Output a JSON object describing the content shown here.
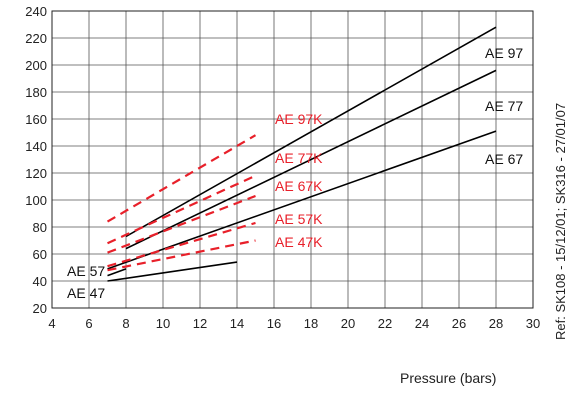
{
  "chart_data": {
    "type": "line",
    "title": "",
    "xlabel": "Pressure (bars)",
    "ylabel": "",
    "xlim": [
      4,
      30
    ],
    "ylim": [
      20,
      240
    ],
    "x_ticks": [
      4,
      6,
      8,
      10,
      12,
      14,
      16,
      18,
      20,
      22,
      24,
      26,
      28,
      30
    ],
    "y_ticks": [
      20,
      40,
      60,
      80,
      100,
      120,
      140,
      160,
      180,
      200,
      220,
      240
    ],
    "grid": true,
    "series": [
      {
        "name": "AE 97",
        "style": "solid",
        "color": "#000000",
        "x": [
          8,
          28
        ],
        "y": [
          73,
          228
        ]
      },
      {
        "name": "AE 77",
        "style": "solid",
        "color": "#000000",
        "x": [
          8,
          28
        ],
        "y": [
          64,
          196
        ]
      },
      {
        "name": "AE 67",
        "style": "solid",
        "color": "#000000",
        "x": [
          7,
          28
        ],
        "y": [
          49,
          151
        ]
      },
      {
        "name": "AE 57",
        "style": "solid",
        "color": "#000000",
        "x": [
          7,
          8
        ],
        "y": [
          44,
          49
        ]
      },
      {
        "name": "AE 47",
        "style": "solid",
        "color": "#000000",
        "x": [
          7,
          14
        ],
        "y": [
          40,
          54
        ]
      },
      {
        "name": "AE 97K",
        "style": "dashed",
        "color": "#e8202a",
        "x": [
          7,
          15
        ],
        "y": [
          84,
          148
        ]
      },
      {
        "name": "AE 77K",
        "style": "dashed",
        "color": "#e8202a",
        "x": [
          7,
          15
        ],
        "y": [
          68,
          118
        ]
      },
      {
        "name": "AE 67K",
        "style": "dashed",
        "color": "#e8202a",
        "x": [
          7,
          15
        ],
        "y": [
          61,
          103
        ]
      },
      {
        "name": "AE 57K",
        "style": "dashed",
        "color": "#e8202a",
        "x": [
          7,
          15
        ],
        "y": [
          51,
          83
        ]
      },
      {
        "name": "AE 47K",
        "style": "dashed",
        "color": "#e8202a",
        "x": [
          7,
          15
        ],
        "y": [
          48,
          70
        ]
      }
    ],
    "labels": {
      "ae97": "AE 97",
      "ae77": "AE 77",
      "ae67": "AE 67",
      "ae57": "AE 57",
      "ae47": "AE 47",
      "ae97k": "AE 97K",
      "ae77k": "AE 77K",
      "ae67k": "AE 67K",
      "ae57k": "AE 57K",
      "ae47k": "AE 47K"
    },
    "annotation": "Ref: SK108 - 15/12/01; SK316 - 27/01/07"
  }
}
